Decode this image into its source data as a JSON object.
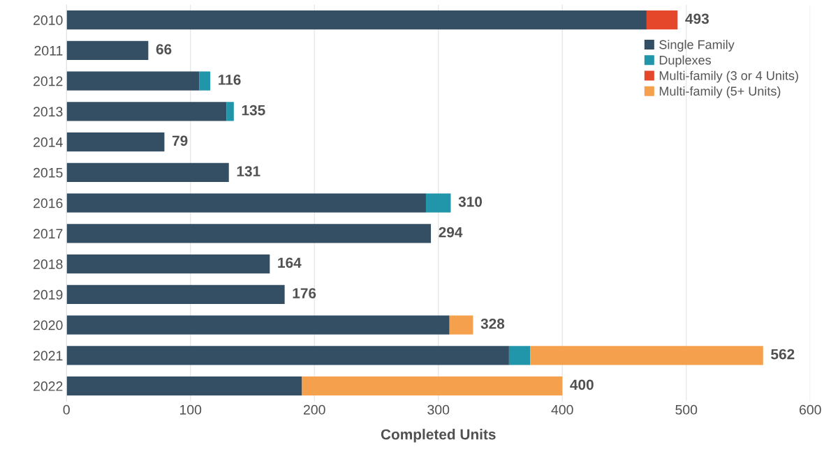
{
  "chart_data": {
    "type": "bar",
    "orientation": "horizontal",
    "stacked": true,
    "xlabel": "Completed Units",
    "categories": [
      "2010",
      "2011",
      "2012",
      "2013",
      "2014",
      "2015",
      "2016",
      "2017",
      "2018",
      "2019",
      "2020",
      "2021",
      "2022"
    ],
    "series": [
      {
        "name": "Single Family",
        "color": "#344f63",
        "values": [
          468,
          66,
          107,
          129,
          79,
          131,
          290,
          294,
          164,
          176,
          309,
          357,
          190
        ]
      },
      {
        "name": "Duplexes",
        "color": "#2196aa",
        "values": [
          null,
          null,
          9,
          6,
          null,
          null,
          20,
          null,
          null,
          null,
          null,
          17,
          null
        ]
      },
      {
        "name": "Multi-family (3 or 4 Units)",
        "color": "#e4472a",
        "values": [
          25,
          null,
          null,
          null,
          null,
          null,
          null,
          null,
          null,
          null,
          null,
          null,
          null
        ]
      },
      {
        "name": "Multi-family (5+ Units)",
        "color": "#f4a04c",
        "values": [
          null,
          null,
          null,
          null,
          null,
          null,
          null,
          null,
          null,
          null,
          19,
          188,
          210
        ]
      }
    ],
    "totals": [
      "493",
      "66",
      "116",
      "135",
      "79",
      "131",
      "310",
      "294",
      "164",
      "176",
      "328",
      "562",
      "400"
    ],
    "xlim": [
      0,
      600
    ],
    "xticks": [
      0,
      100,
      200,
      300,
      400,
      500,
      600
    ],
    "grid": "x",
    "legend": "top right"
  }
}
